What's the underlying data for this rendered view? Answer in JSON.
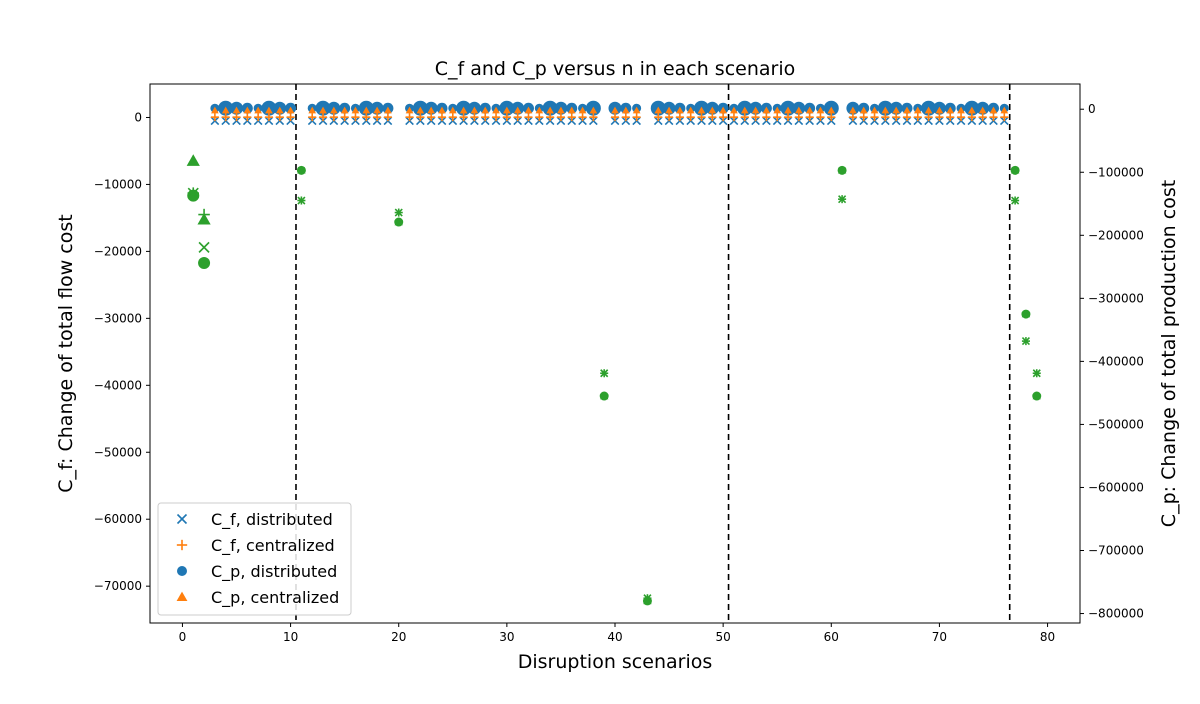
{
  "chart_data": {
    "type": "scatter",
    "title": "C_f and C_p versus n in each scenario",
    "xlabel": "Disruption scenarios",
    "ylabel": "C_f: Change of total flow cost",
    "y2label": "C_p: Change of total production cost",
    "xlim": [
      -3,
      83
    ],
    "ylim": [
      -75500,
      5000
    ],
    "y2lim": [
      -815000,
      40000
    ],
    "xticks": [
      0,
      10,
      20,
      30,
      40,
      50,
      60,
      70,
      80
    ],
    "yticks": [
      0,
      -10000,
      -20000,
      -30000,
      -40000,
      -50000,
      -60000,
      -70000
    ],
    "y2ticks": [
      0,
      -100000,
      -200000,
      -300000,
      -400000,
      -500000,
      -600000,
      -700000,
      -800000
    ],
    "vlines": [
      10.5,
      50.5,
      76.5
    ],
    "legend_position": "lower-left",
    "colors": {
      "blue": "#1f77b4",
      "orange": "#ff7f0e",
      "green": "#2ca02c"
    },
    "series": [
      {
        "name": "C_f, distributed",
        "marker": "x",
        "color": "#1f77b4",
        "axis": "left"
      },
      {
        "name": "C_f, centralized",
        "marker": "+",
        "color": "#ff7f0e",
        "axis": "left"
      },
      {
        "name": "C_p, distributed",
        "marker": "circle",
        "color": "#1f77b4",
        "axis": "right"
      },
      {
        "name": "C_p, centralized",
        "marker": "triangle",
        "color": "#ff7f0e",
        "axis": "right"
      }
    ],
    "flat_scenarios": [
      3,
      4,
      5,
      6,
      7,
      8,
      9,
      10,
      12,
      13,
      14,
      15,
      16,
      17,
      18,
      19,
      21,
      22,
      23,
      24,
      25,
      26,
      27,
      28,
      29,
      30,
      31,
      32,
      33,
      34,
      35,
      36,
      37,
      38,
      40,
      41,
      42,
      44,
      45,
      46,
      47,
      48,
      49,
      50,
      51,
      52,
      53,
      54,
      55,
      56,
      57,
      58,
      59,
      60,
      62,
      63,
      64,
      65,
      66,
      67,
      68,
      69,
      70,
      71,
      72,
      73,
      74,
      75,
      76
    ],
    "outliers": [
      {
        "x": 1,
        "cf_distributed": -11300,
        "cf_centralized": -11300,
        "cp_distributed": -137000,
        "cp_centralized": -82000,
        "color": "#2ca02c"
      },
      {
        "x": 2,
        "cf_distributed": -19400,
        "cf_centralized": -14500,
        "cp_distributed": -244000,
        "cp_centralized": -175000,
        "color": "#2ca02c"
      },
      {
        "x": 11,
        "cf_distributed": -12400,
        "cf_centralized": -12400,
        "cp_distributed": -97000,
        "cp_centralized": -97000,
        "color": "#2ca02c"
      },
      {
        "x": 20,
        "cf_distributed": -14200,
        "cf_centralized": -14200,
        "cp_distributed": -179000,
        "cp_centralized": -179000,
        "color": "#2ca02c"
      },
      {
        "x": 39,
        "cf_distributed": -38200,
        "cf_centralized": -38200,
        "cp_distributed": -455000,
        "cp_centralized": -455000,
        "color": "#2ca02c"
      },
      {
        "x": 43,
        "cf_distributed": -71800,
        "cf_centralized": -71800,
        "cp_distributed": -780000,
        "cp_centralized": -780000,
        "color": "#2ca02c"
      },
      {
        "x": 61,
        "cf_distributed": -12200,
        "cf_centralized": -12200,
        "cp_distributed": -97000,
        "cp_centralized": -97000,
        "color": "#2ca02c"
      },
      {
        "x": 77,
        "cf_distributed": -12400,
        "cf_centralized": -12400,
        "cp_distributed": -97000,
        "cp_centralized": -97000,
        "color": "#2ca02c"
      },
      {
        "x": 78,
        "cf_distributed": -33400,
        "cf_centralized": -33400,
        "cp_distributed": -325000,
        "cp_centralized": -325000,
        "color": "#2ca02c"
      },
      {
        "x": 79,
        "cf_distributed": -38200,
        "cf_centralized": -38200,
        "cp_distributed": -455000,
        "cp_centralized": -455000,
        "color": "#2ca02c"
      }
    ]
  }
}
